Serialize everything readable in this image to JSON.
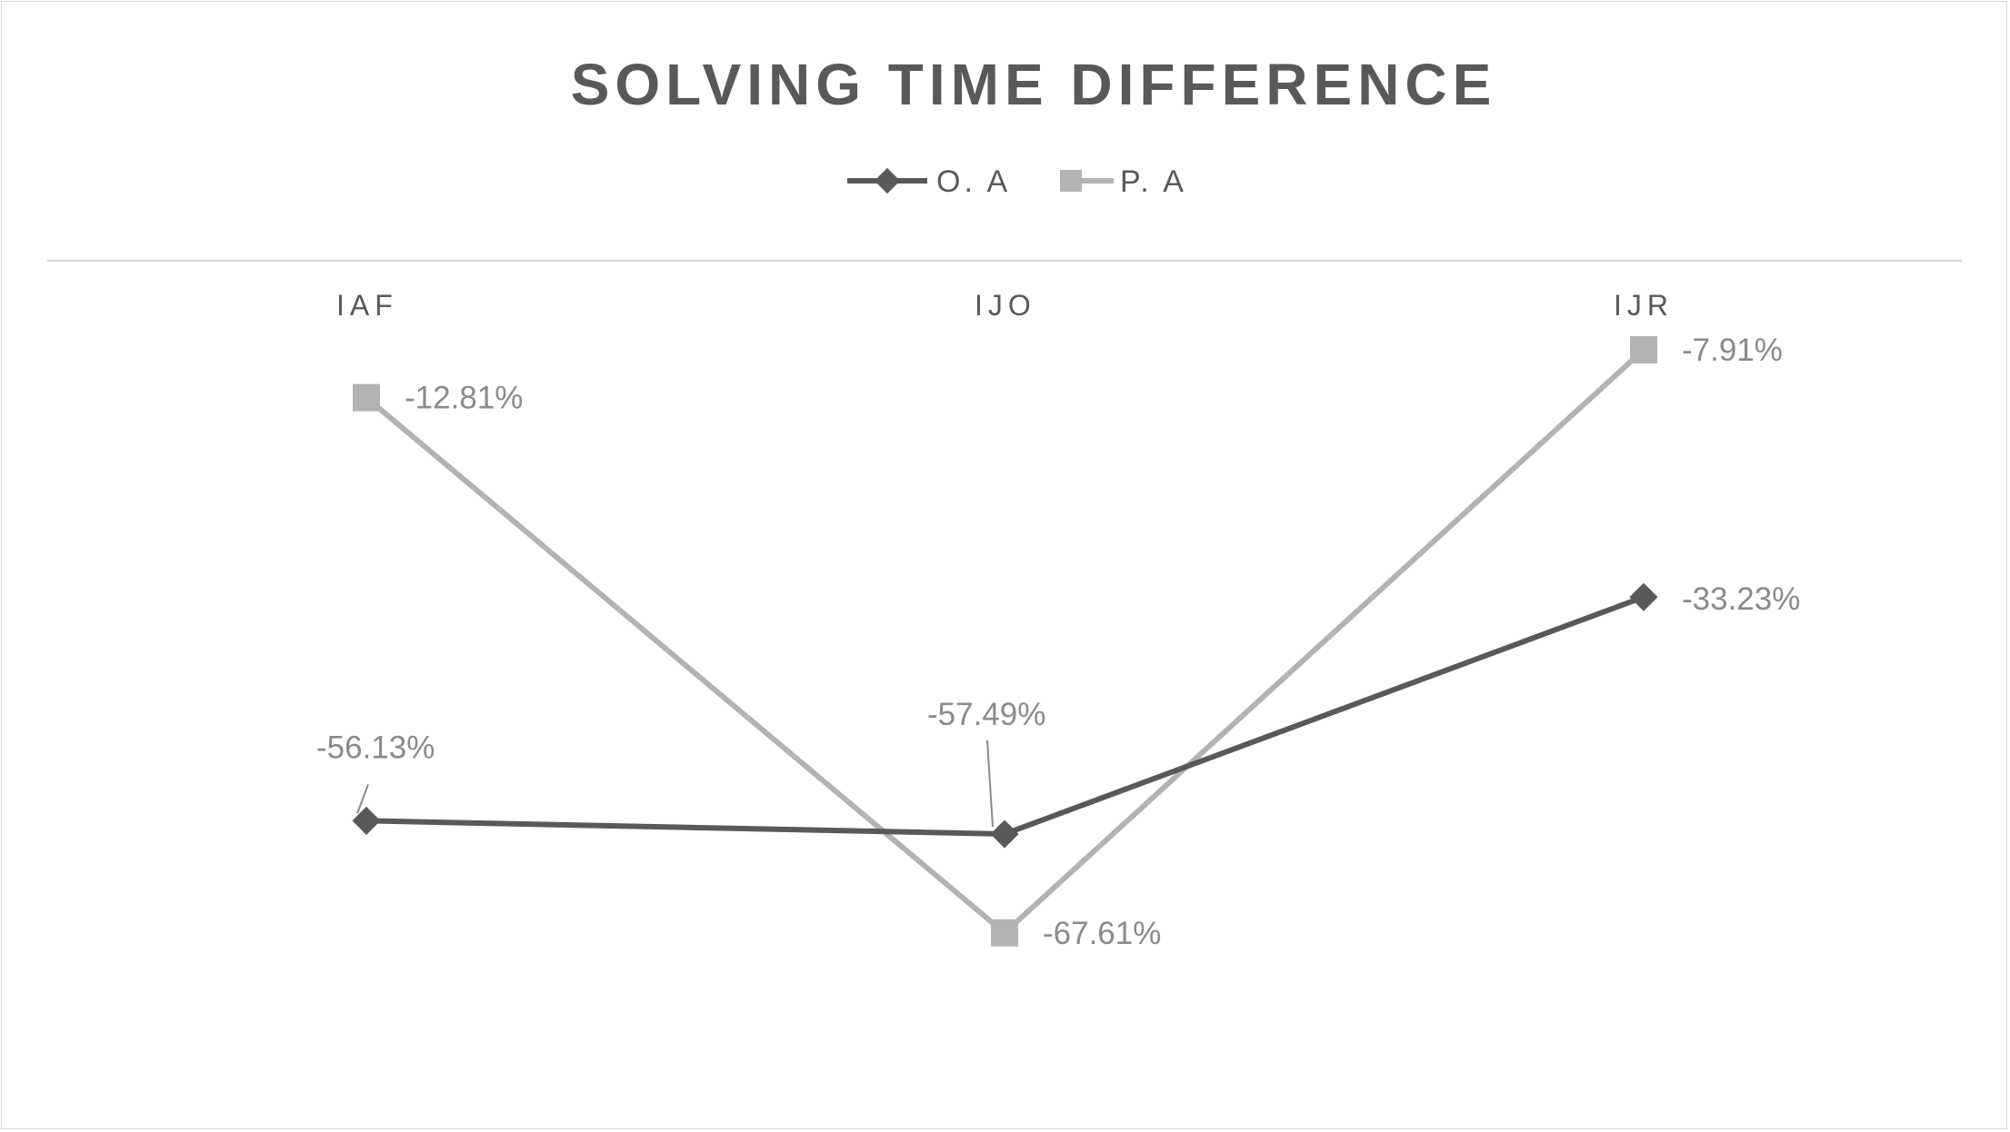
{
  "chart_data": {
    "type": "line",
    "title": "SOLVING TIME DIFFERENCE",
    "categories": [
      "IAF",
      "IJO",
      "IJR"
    ],
    "series": [
      {
        "name": "O. A",
        "values": [
          -56.13,
          -57.49,
          -33.23
        ],
        "labels": [
          "-56.13%",
          "-57.49%",
          "-33.23%"
        ],
        "color": "#595959",
        "marker": "diamond"
      },
      {
        "name": "P. A",
        "values": [
          -12.81,
          -67.61,
          -7.91
        ],
        "labels": [
          "-12.81%",
          "-67.61%",
          "-7.91%"
        ],
        "color": "#b3b3b3",
        "marker": "square"
      }
    ],
    "ylim": [
      -80,
      0
    ],
    "x_axis_position": "top",
    "gridlines": false,
    "legend_position": "top",
    "data_label_units": "%"
  }
}
